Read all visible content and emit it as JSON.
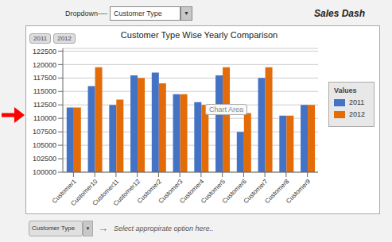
{
  "chart_data": {
    "type": "bar",
    "title": "Customer Type Wise Yearly Comparison",
    "categories": [
      "Customer1",
      "Customer10",
      "Customer11",
      "Customer12",
      "Customer2",
      "Customer3",
      "Customer4",
      "Customer5",
      "Customer6",
      "Customer7",
      "Customer8",
      "Customer9"
    ],
    "series": [
      {
        "name": "2011",
        "color": "#4472C4",
        "values": [
          112000,
          116000,
          112500,
          118000,
          118500,
          114500,
          113000,
          118000,
          107500,
          117500,
          110500,
          112500
        ]
      },
      {
        "name": "2012",
        "color": "#E36C09",
        "values": [
          112000,
          119500,
          113500,
          117500,
          116500,
          114500,
          112500,
          119500,
          111000,
          119500,
          110500,
          112500
        ]
      }
    ],
    "ylim": [
      100000,
      123000
    ],
    "yticks": [
      100000,
      102500,
      105000,
      107500,
      110000,
      112500,
      115000,
      117500,
      120000,
      122500
    ],
    "grid": true,
    "legend": "right",
    "annotations": [
      "Dropdown----",
      "Customer Type",
      "▼",
      "Sales Dash",
      "Values",
      "Chart Area",
      "Customer Type",
      "▼",
      "→",
      "  Select appropirate option here.."
    ]
  }
}
